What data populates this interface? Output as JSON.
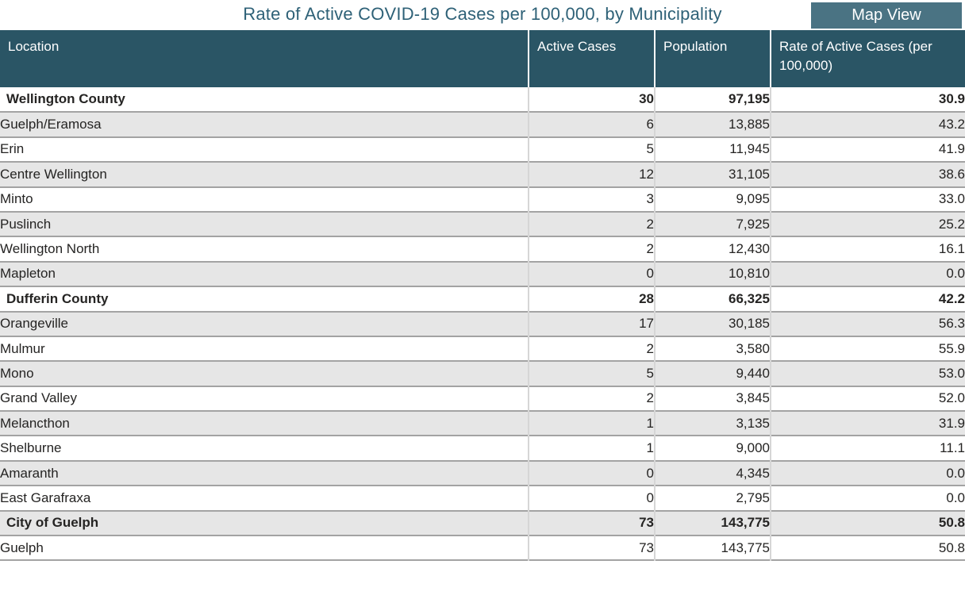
{
  "title": "Rate of Active COVID-19 Cases per 100,000, by Municipality",
  "map_view_button": {
    "label": "Map View"
  },
  "colors": {
    "header_bg": "#2a5565",
    "button_bg": "#4a7383",
    "title_color": "#2e6177",
    "zebra_gray": "#e6e6e6",
    "row_border": "#a3a3a3",
    "col_divider": "#d6d6d6",
    "body_text": "#252423"
  },
  "table": {
    "columns": [
      "Location",
      "Active Cases",
      "Population",
      "Rate of Active Cases (per 100,000)"
    ],
    "rows": [
      {
        "level": "county",
        "location": "Wellington County",
        "active_cases": "30",
        "population": "97,195",
        "rate": "30.9"
      },
      {
        "level": "municipality",
        "location": "Guelph/Eramosa",
        "active_cases": "6",
        "population": "13,885",
        "rate": "43.2"
      },
      {
        "level": "municipality",
        "location": "Erin",
        "active_cases": "5",
        "population": "11,945",
        "rate": "41.9"
      },
      {
        "level": "municipality",
        "location": "Centre Wellington",
        "active_cases": "12",
        "population": "31,105",
        "rate": "38.6"
      },
      {
        "level": "municipality",
        "location": "Minto",
        "active_cases": "3",
        "population": "9,095",
        "rate": "33.0"
      },
      {
        "level": "municipality",
        "location": "Puslinch",
        "active_cases": "2",
        "population": "7,925",
        "rate": "25.2"
      },
      {
        "level": "municipality",
        "location": "Wellington North",
        "active_cases": "2",
        "population": "12,430",
        "rate": "16.1"
      },
      {
        "level": "municipality",
        "location": "Mapleton",
        "active_cases": "0",
        "population": "10,810",
        "rate": "0.0"
      },
      {
        "level": "county",
        "location": "Dufferin County",
        "active_cases": "28",
        "population": "66,325",
        "rate": "42.2"
      },
      {
        "level": "municipality",
        "location": "Orangeville",
        "active_cases": "17",
        "population": "30,185",
        "rate": "56.3"
      },
      {
        "level": "municipality",
        "location": "Mulmur",
        "active_cases": "2",
        "population": "3,580",
        "rate": "55.9"
      },
      {
        "level": "municipality",
        "location": "Mono",
        "active_cases": "5",
        "population": "9,440",
        "rate": "53.0"
      },
      {
        "level": "municipality",
        "location": "Grand Valley",
        "active_cases": "2",
        "population": "3,845",
        "rate": "52.0"
      },
      {
        "level": "municipality",
        "location": "Melancthon",
        "active_cases": "1",
        "population": "3,135",
        "rate": "31.9"
      },
      {
        "level": "municipality",
        "location": "Shelburne",
        "active_cases": "1",
        "population": "9,000",
        "rate": "11.1"
      },
      {
        "level": "municipality",
        "location": "Amaranth",
        "active_cases": "0",
        "population": "4,345",
        "rate": "0.0"
      },
      {
        "level": "municipality",
        "location": "East Garafraxa",
        "active_cases": "0",
        "population": "2,795",
        "rate": "0.0"
      },
      {
        "level": "county",
        "location": "City of Guelph",
        "active_cases": "73",
        "population": "143,775",
        "rate": "50.8"
      },
      {
        "level": "municipality",
        "location": "Guelph",
        "active_cases": "73",
        "population": "143,775",
        "rate": "50.8"
      }
    ]
  }
}
